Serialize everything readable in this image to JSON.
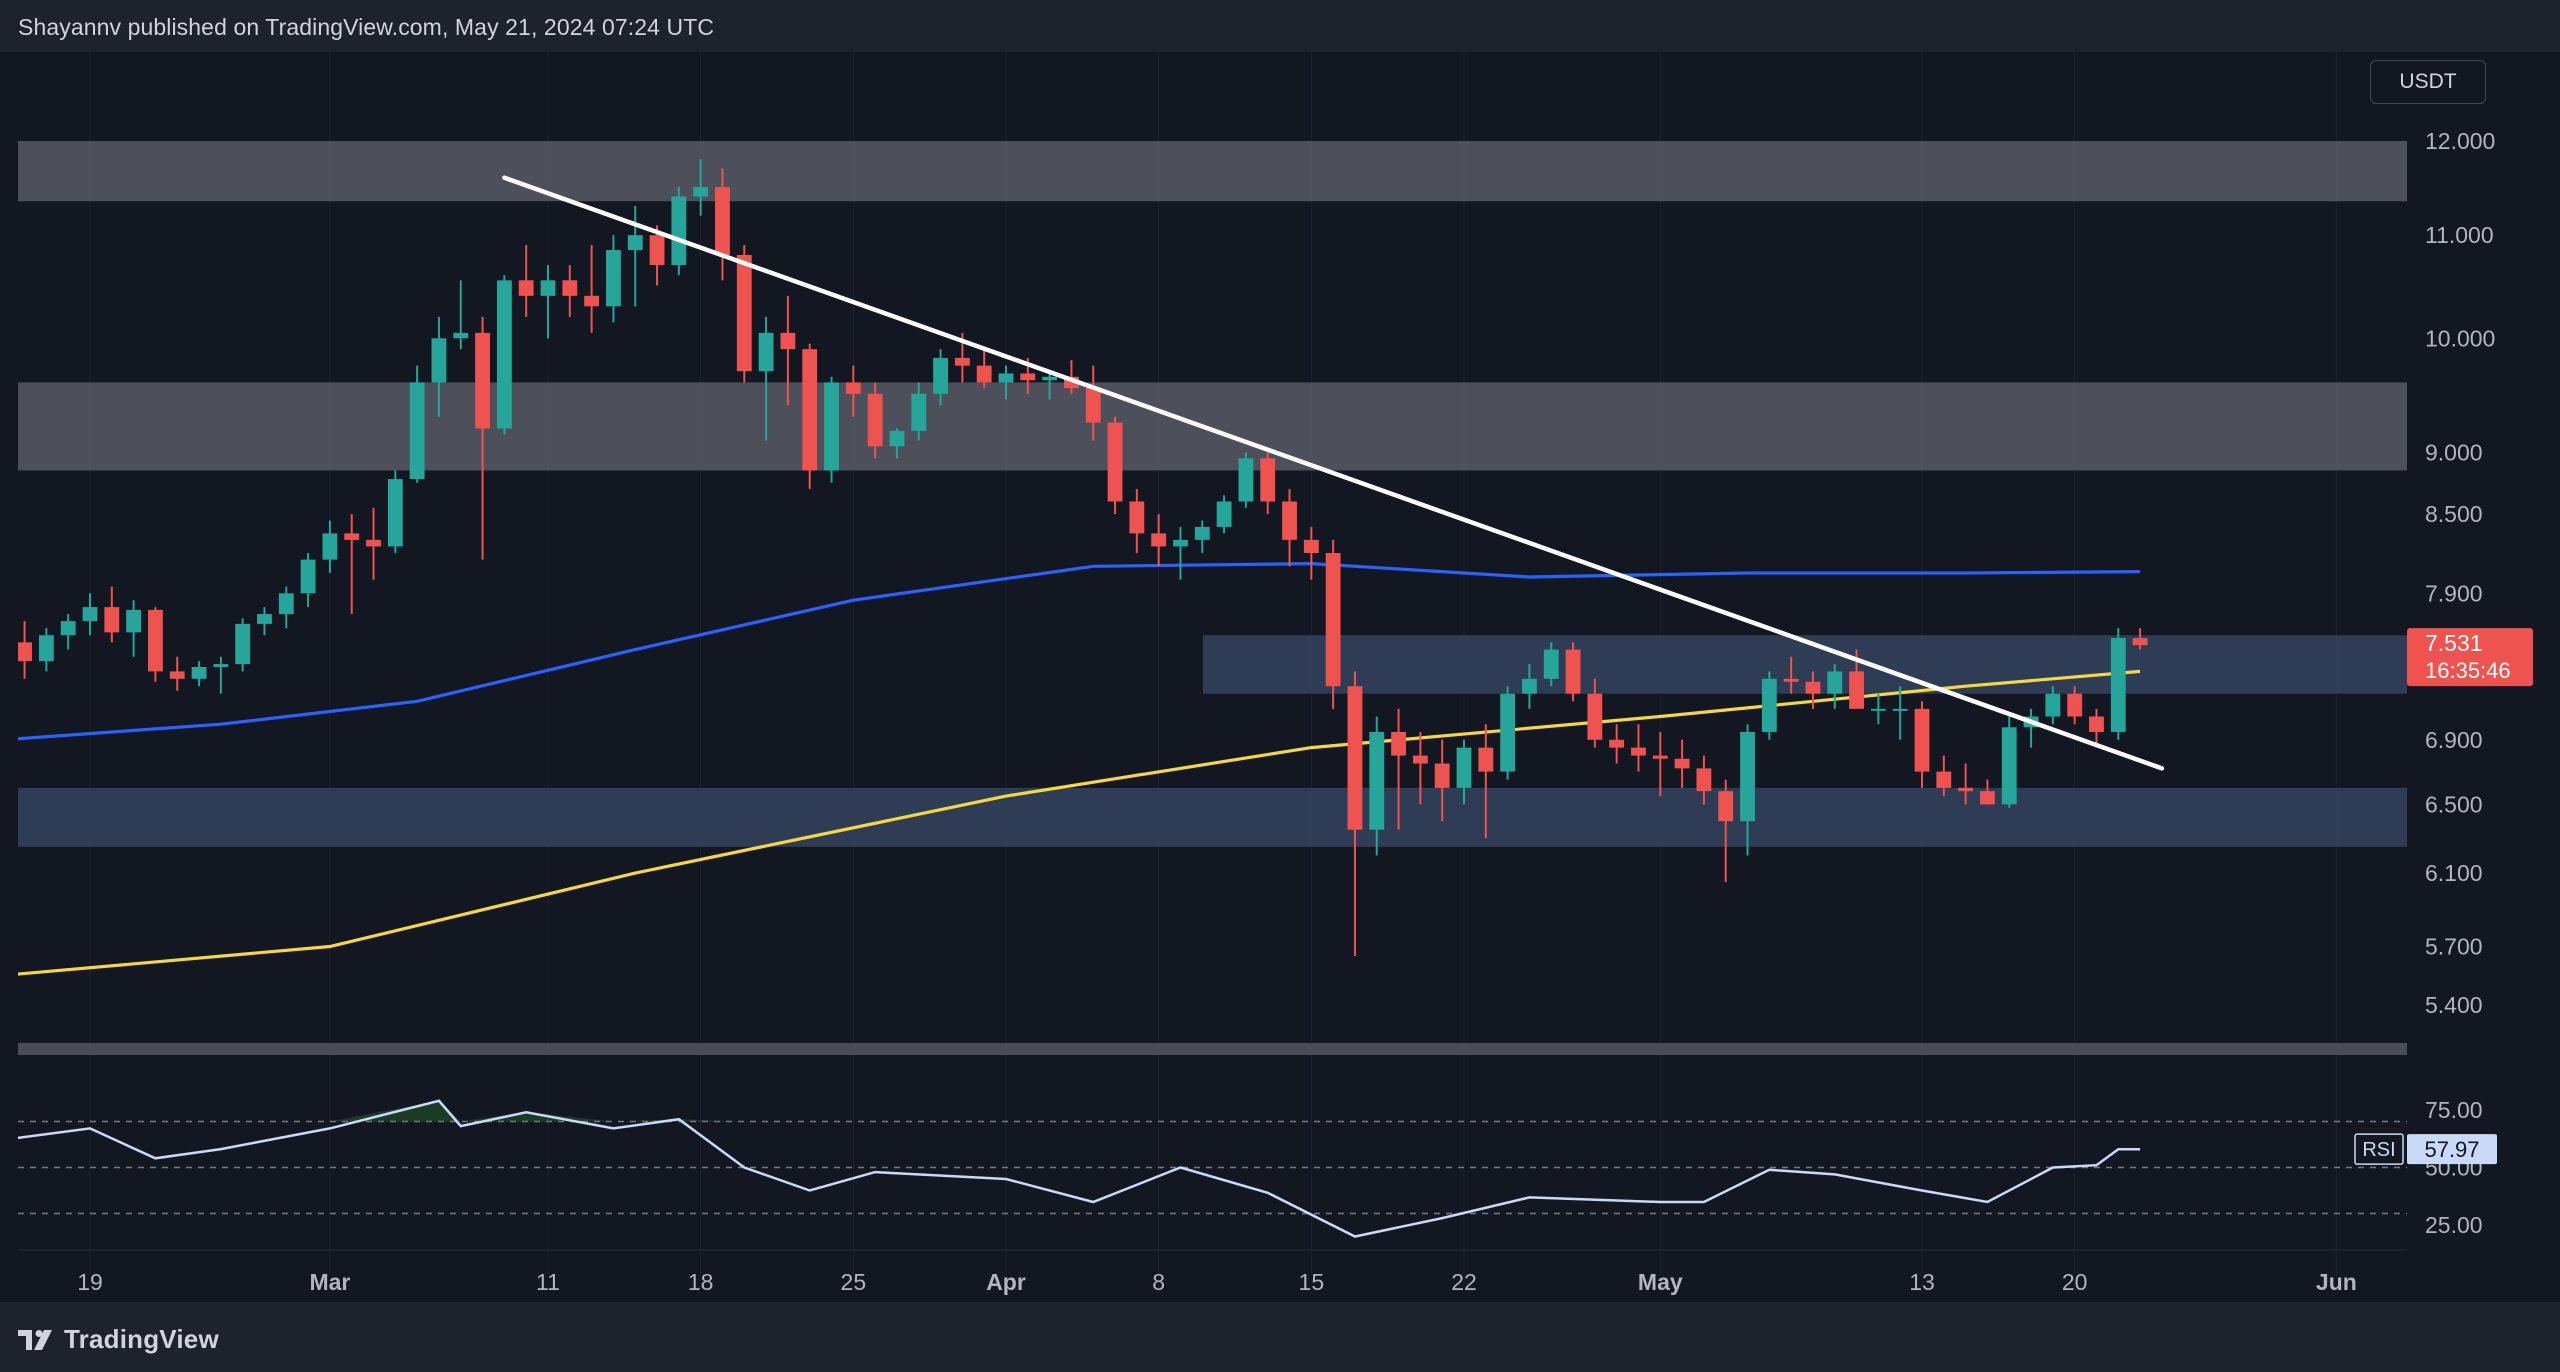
{
  "header": {
    "text": "Shayannv published on TradingView.com, May 21, 2024 07:24 UTC"
  },
  "currency_button": {
    "label": "USDT"
  },
  "footer": {
    "brand": "TradingView",
    "logo_icon": "tradingview-logo-icon"
  },
  "colors": {
    "background": "#131722",
    "up": "#26a69a",
    "down": "#ef5350",
    "trendline": "#ffffff",
    "ma_blue": "#2962ff",
    "ma_yellow": "#f5d742",
    "rsi": "#c9daf8",
    "resistance_zone": "#5d606b",
    "support_zone": "#34435e"
  },
  "chart_data": [
    {
      "type": "candlestick",
      "title": "",
      "price_axis": {
        "ticks": [
          "12.000",
          "11.000",
          "10.000",
          "9.000",
          "8.500",
          "7.900",
          "6.900",
          "6.500",
          "6.100",
          "5.700",
          "5.400"
        ]
      },
      "time_axis": {
        "ticks": [
          "19",
          "Mar",
          "11",
          "18",
          "25",
          "Apr",
          "8",
          "15",
          "22",
          "May",
          "13",
          "20",
          "Jun"
        ]
      },
      "last_price": {
        "value": "7.531",
        "countdown": "16:35:46"
      },
      "zones": [
        {
          "name": "resistance-zone-top",
          "from": 11.35,
          "to": 12.0
        },
        {
          "name": "resistance-zone-mid",
          "from": 8.85,
          "to": 9.6
        },
        {
          "name": "zone-upper-range",
          "from": 7.2,
          "to": 7.6
        },
        {
          "name": "zone-support",
          "from": 6.25,
          "to": 6.6
        }
      ],
      "trendline": {
        "from": [
          "2024-03-09",
          11.6
        ],
        "to": [
          "2024-05-24",
          6.72
        ]
      },
      "candles": [
        [
          "2024-02-15",
          7.5,
          7.65,
          7.35,
          7.55
        ],
        [
          "2024-02-16",
          7.55,
          7.7,
          7.3,
          7.42
        ],
        [
          "2024-02-17",
          7.42,
          7.65,
          7.35,
          7.6
        ],
        [
          "2024-02-18",
          7.6,
          7.75,
          7.5,
          7.7
        ],
        [
          "2024-02-19",
          7.7,
          7.9,
          7.6,
          7.8
        ],
        [
          "2024-02-20",
          7.8,
          7.95,
          7.55,
          7.62
        ],
        [
          "2024-02-21",
          7.62,
          7.85,
          7.45,
          7.78
        ],
        [
          "2024-02-22",
          7.78,
          7.8,
          7.28,
          7.35
        ],
        [
          "2024-02-23",
          7.35,
          7.45,
          7.22,
          7.3
        ],
        [
          "2024-02-24",
          7.3,
          7.42,
          7.25,
          7.38
        ],
        [
          "2024-02-25",
          7.38,
          7.45,
          7.2,
          7.4
        ],
        [
          "2024-02-26",
          7.4,
          7.72,
          7.35,
          7.68
        ],
        [
          "2024-02-27",
          7.68,
          7.8,
          7.6,
          7.75
        ],
        [
          "2024-02-28",
          7.75,
          7.95,
          7.65,
          7.9
        ],
        [
          "2024-02-29",
          7.9,
          8.2,
          7.8,
          8.15
        ],
        [
          "2024-03-01",
          8.15,
          8.45,
          8.05,
          8.35
        ],
        [
          "2024-03-02",
          8.35,
          8.5,
          7.75,
          8.3
        ],
        [
          "2024-03-03",
          8.3,
          8.55,
          8.0,
          8.25
        ],
        [
          "2024-03-04",
          8.25,
          8.85,
          8.2,
          8.78
        ],
        [
          "2024-03-05",
          8.78,
          9.75,
          8.75,
          9.6
        ],
        [
          "2024-03-06",
          9.6,
          10.2,
          9.3,
          10.0
        ],
        [
          "2024-03-07",
          10.0,
          10.55,
          9.9,
          10.05
        ],
        [
          "2024-03-08",
          10.05,
          10.2,
          8.15,
          9.2
        ],
        [
          "2024-03-09",
          9.2,
          10.6,
          9.15,
          10.55
        ],
        [
          "2024-03-10",
          10.55,
          10.9,
          10.2,
          10.4
        ],
        [
          "2024-03-11",
          10.4,
          10.7,
          10.0,
          10.55
        ],
        [
          "2024-03-12",
          10.55,
          10.7,
          10.2,
          10.4
        ],
        [
          "2024-03-13",
          10.4,
          10.9,
          10.05,
          10.3
        ],
        [
          "2024-03-14",
          10.3,
          11.0,
          10.15,
          10.85
        ],
        [
          "2024-03-15",
          10.85,
          11.3,
          10.3,
          11.0
        ],
        [
          "2024-03-16",
          11.0,
          11.1,
          10.5,
          10.7
        ],
        [
          "2024-03-17",
          10.7,
          11.5,
          10.6,
          11.4
        ],
        [
          "2024-03-18",
          11.4,
          11.8,
          11.2,
          11.5
        ],
        [
          "2024-03-19",
          11.5,
          11.7,
          10.55,
          10.8
        ],
        [
          "2024-03-20",
          10.8,
          10.9,
          9.6,
          9.7
        ],
        [
          "2024-03-21",
          9.7,
          10.2,
          9.1,
          10.05
        ],
        [
          "2024-03-22",
          10.05,
          10.4,
          9.4,
          9.9
        ],
        [
          "2024-03-23",
          9.9,
          9.95,
          8.7,
          8.85
        ],
        [
          "2024-03-24",
          8.85,
          9.65,
          8.75,
          9.6
        ],
        [
          "2024-03-25",
          9.6,
          9.75,
          9.3,
          9.5
        ],
        [
          "2024-03-26",
          9.5,
          9.6,
          8.95,
          9.05
        ],
        [
          "2024-03-27",
          9.05,
          9.2,
          8.95,
          9.18
        ],
        [
          "2024-03-28",
          9.18,
          9.6,
          9.1,
          9.5
        ],
        [
          "2024-03-29",
          9.5,
          9.9,
          9.4,
          9.82
        ],
        [
          "2024-03-30",
          9.82,
          10.05,
          9.6,
          9.75
        ],
        [
          "2024-03-31",
          9.75,
          9.9,
          9.55,
          9.6
        ],
        [
          "2024-04-01",
          9.6,
          9.75,
          9.45,
          9.68
        ],
        [
          "2024-04-02",
          9.68,
          9.82,
          9.5,
          9.62
        ],
        [
          "2024-04-03",
          9.62,
          9.7,
          9.45,
          9.65
        ],
        [
          "2024-04-04",
          9.65,
          9.8,
          9.5,
          9.55
        ],
        [
          "2024-04-05",
          9.55,
          9.75,
          9.1,
          9.25
        ],
        [
          "2024-04-06",
          9.25,
          9.3,
          8.5,
          8.6
        ],
        [
          "2024-04-07",
          8.6,
          8.7,
          8.2,
          8.35
        ],
        [
          "2024-04-08",
          8.35,
          8.5,
          8.1,
          8.25
        ],
        [
          "2024-04-09",
          8.25,
          8.4,
          8.0,
          8.3
        ],
        [
          "2024-04-10",
          8.3,
          8.45,
          8.2,
          8.4
        ],
        [
          "2024-04-11",
          8.4,
          8.65,
          8.35,
          8.6
        ],
        [
          "2024-04-12",
          8.6,
          9.0,
          8.55,
          8.95
        ],
        [
          "2024-04-13",
          8.95,
          9.0,
          8.5,
          8.6
        ],
        [
          "2024-04-14",
          8.6,
          8.7,
          8.1,
          8.3
        ],
        [
          "2024-04-15",
          8.3,
          8.4,
          8.0,
          8.2
        ],
        [
          "2024-04-16",
          8.2,
          8.3,
          7.1,
          7.25
        ],
        [
          "2024-04-17",
          7.25,
          7.35,
          5.65,
          6.35
        ],
        [
          "2024-04-18",
          6.35,
          7.05,
          6.2,
          6.95
        ],
        [
          "2024-04-19",
          6.95,
          7.1,
          6.35,
          6.8
        ],
        [
          "2024-04-20",
          6.8,
          6.95,
          6.5,
          6.75
        ],
        [
          "2024-04-21",
          6.75,
          6.9,
          6.4,
          6.6
        ],
        [
          "2024-04-22",
          6.6,
          6.9,
          6.5,
          6.85
        ],
        [
          "2024-04-23",
          6.85,
          7.0,
          6.3,
          6.7
        ],
        [
          "2024-04-24",
          6.7,
          7.25,
          6.65,
          7.2
        ],
        [
          "2024-04-25",
          7.2,
          7.4,
          7.1,
          7.3
        ],
        [
          "2024-04-26",
          7.3,
          7.55,
          7.25,
          7.5
        ],
        [
          "2024-04-27",
          7.5,
          7.55,
          7.15,
          7.2
        ],
        [
          "2024-04-28",
          7.2,
          7.3,
          6.85,
          6.9
        ],
        [
          "2024-04-29",
          6.9,
          7.0,
          6.75,
          6.85
        ],
        [
          "2024-04-30",
          6.85,
          7.0,
          6.7,
          6.8
        ],
        [
          "2024-05-01",
          6.8,
          6.95,
          6.55,
          6.78
        ],
        [
          "2024-05-02",
          6.78,
          6.9,
          6.6,
          6.72
        ],
        [
          "2024-05-03",
          6.72,
          6.8,
          6.5,
          6.58
        ],
        [
          "2024-05-04",
          6.58,
          6.65,
          6.05,
          6.4
        ],
        [
          "2024-05-05",
          6.4,
          7.0,
          6.2,
          6.95
        ],
        [
          "2024-05-06",
          6.95,
          7.35,
          6.9,
          7.3
        ],
        [
          "2024-05-07",
          7.3,
          7.45,
          7.2,
          7.28
        ],
        [
          "2024-05-08",
          7.28,
          7.35,
          7.1,
          7.2
        ],
        [
          "2024-05-09",
          7.2,
          7.4,
          7.1,
          7.35
        ],
        [
          "2024-05-10",
          7.35,
          7.5,
          7.15,
          7.1
        ],
        [
          "2024-05-11",
          7.1,
          7.2,
          7.0,
          7.1
        ],
        [
          "2024-05-12",
          7.1,
          7.25,
          6.9,
          7.1
        ],
        [
          "2024-05-13",
          7.1,
          7.15,
          6.6,
          6.7
        ],
        [
          "2024-05-14",
          6.7,
          6.8,
          6.55,
          6.6
        ],
        [
          "2024-05-15",
          6.6,
          6.75,
          6.5,
          6.58
        ],
        [
          "2024-05-16",
          6.58,
          6.65,
          6.5,
          6.5
        ],
        [
          "2024-05-17",
          6.5,
          7.05,
          6.48,
          6.98
        ],
        [
          "2024-05-18",
          6.98,
          7.1,
          6.85,
          7.05
        ],
        [
          "2024-05-19",
          7.05,
          7.25,
          7.0,
          7.2
        ],
        [
          "2024-05-20",
          7.2,
          7.25,
          7.0,
          7.05
        ],
        [
          "2024-05-21",
          7.05,
          7.1,
          6.85,
          6.95
        ],
        [
          "2024-05-22",
          6.95,
          7.65,
          6.9,
          7.58
        ],
        [
          "2024-05-23",
          7.58,
          7.65,
          7.5,
          7.531
        ]
      ],
      "moving_averages": [
        {
          "name": "ma-blue",
          "color": "#2962ff",
          "values": [
            [
              "2024-02-15",
              6.9
            ],
            [
              "2024-02-25",
              7.0
            ],
            [
              "2024-03-05",
              7.15
            ],
            [
              "2024-03-15",
              7.5
            ],
            [
              "2024-03-25",
              7.85
            ],
            [
              "2024-04-05",
              8.1
            ],
            [
              "2024-04-15",
              8.12
            ],
            [
              "2024-04-25",
              8.02
            ],
            [
              "2024-05-05",
              8.05
            ],
            [
              "2024-05-15",
              8.05
            ],
            [
              "2024-05-23",
              8.06
            ]
          ]
        },
        {
          "name": "ma-yellow",
          "color": "#f5d742",
          "values": [
            [
              "2024-02-15",
              5.55
            ],
            [
              "2024-03-01",
              5.7
            ],
            [
              "2024-03-15",
              6.1
            ],
            [
              "2024-04-01",
              6.55
            ],
            [
              "2024-04-15",
              6.85
            ],
            [
              "2024-05-01",
              7.05
            ],
            [
              "2024-05-15",
              7.25
            ],
            [
              "2024-05-23",
              7.35
            ]
          ]
        }
      ]
    },
    {
      "type": "line",
      "title": "RSI",
      "value_label": "RSI",
      "current_value": "57.97",
      "y_ticks": [
        "75.00",
        "50.00",
        "25.00"
      ],
      "levels": [
        70,
        50,
        30
      ],
      "series": [
        {
          "values": [
            [
              "2024-02-15",
              62
            ],
            [
              "2024-02-19",
              67
            ],
            [
              "2024-02-22",
              54
            ],
            [
              "2024-02-25",
              58
            ],
            [
              "2024-03-01",
              67
            ],
            [
              "2024-03-06",
              79
            ],
            [
              "2024-03-07",
              68
            ],
            [
              "2024-03-10",
              74
            ],
            [
              "2024-03-14",
              67
            ],
            [
              "2024-03-17",
              71
            ],
            [
              "2024-03-20",
              50
            ],
            [
              "2024-03-23",
              40
            ],
            [
              "2024-03-26",
              48
            ],
            [
              "2024-04-01",
              45
            ],
            [
              "2024-04-05",
              35
            ],
            [
              "2024-04-09",
              50
            ],
            [
              "2024-04-13",
              39
            ],
            [
              "2024-04-17",
              20
            ],
            [
              "2024-04-21",
              28
            ],
            [
              "2024-04-25",
              37
            ],
            [
              "2024-05-01",
              35
            ],
            [
              "2024-05-03",
              35
            ],
            [
              "2024-05-06",
              49
            ],
            [
              "2024-05-09",
              47
            ],
            [
              "2024-05-13",
              40
            ],
            [
              "2024-05-16",
              35
            ],
            [
              "2024-05-19",
              50
            ],
            [
              "2024-05-21",
              51
            ],
            [
              "2024-05-22",
              57.97
            ],
            [
              "2024-05-23",
              57.97
            ]
          ]
        }
      ]
    }
  ]
}
